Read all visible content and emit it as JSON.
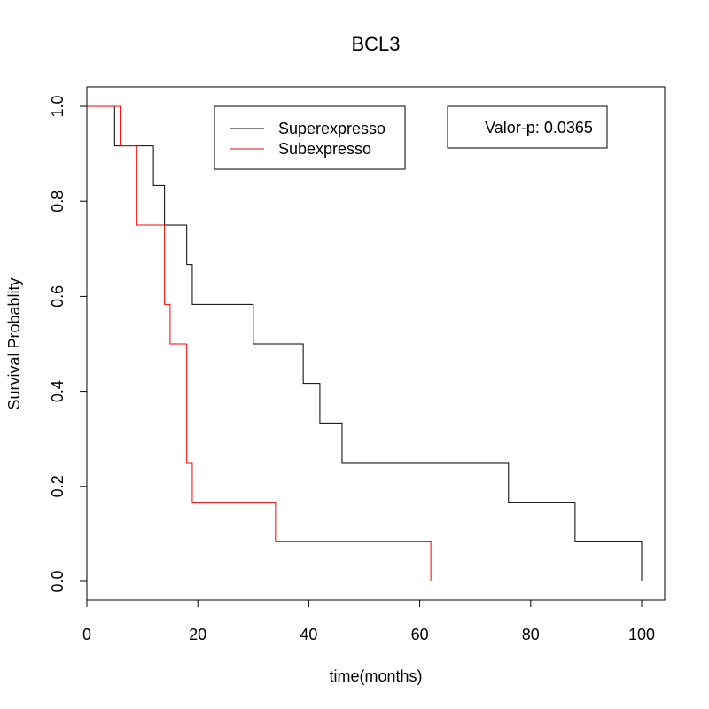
{
  "chart_data": {
    "type": "line",
    "title": "BCL3",
    "xlabel": "time(months)",
    "ylabel": "Survival Probablity",
    "xlim": [
      0,
      104
    ],
    "ylim": [
      -0.04,
      1.04
    ],
    "xticks": [
      "0",
      "20",
      "40",
      "60",
      "80",
      "100"
    ],
    "yticks": [
      "0.0",
      "0.2",
      "0.4",
      "0.6",
      "0.8",
      "1.0"
    ],
    "legend": {
      "position": "top",
      "labels": [
        "Superexpresso",
        "Subexpresso"
      ]
    },
    "annotation": "Valor-p: 0.0365",
    "series": [
      {
        "name": "Superexpresso",
        "color": "#000000",
        "x": [
          0,
          5,
          12,
          14,
          18,
          19,
          30,
          39,
          42,
          46,
          76,
          88,
          100
        ],
        "y": [
          1.0,
          0.9167,
          0.8333,
          0.75,
          0.6667,
          0.5833,
          0.5,
          0.4167,
          0.3333,
          0.25,
          0.1667,
          0.0833,
          0.0
        ]
      },
      {
        "name": "Subexpresso",
        "color": "#ff0000",
        "x": [
          0,
          6,
          9,
          14,
          15,
          18,
          19,
          34,
          62
        ],
        "y": [
          1.0,
          0.9167,
          0.75,
          0.5833,
          0.5,
          0.25,
          0.1667,
          0.0833,
          0.0
        ]
      }
    ]
  }
}
